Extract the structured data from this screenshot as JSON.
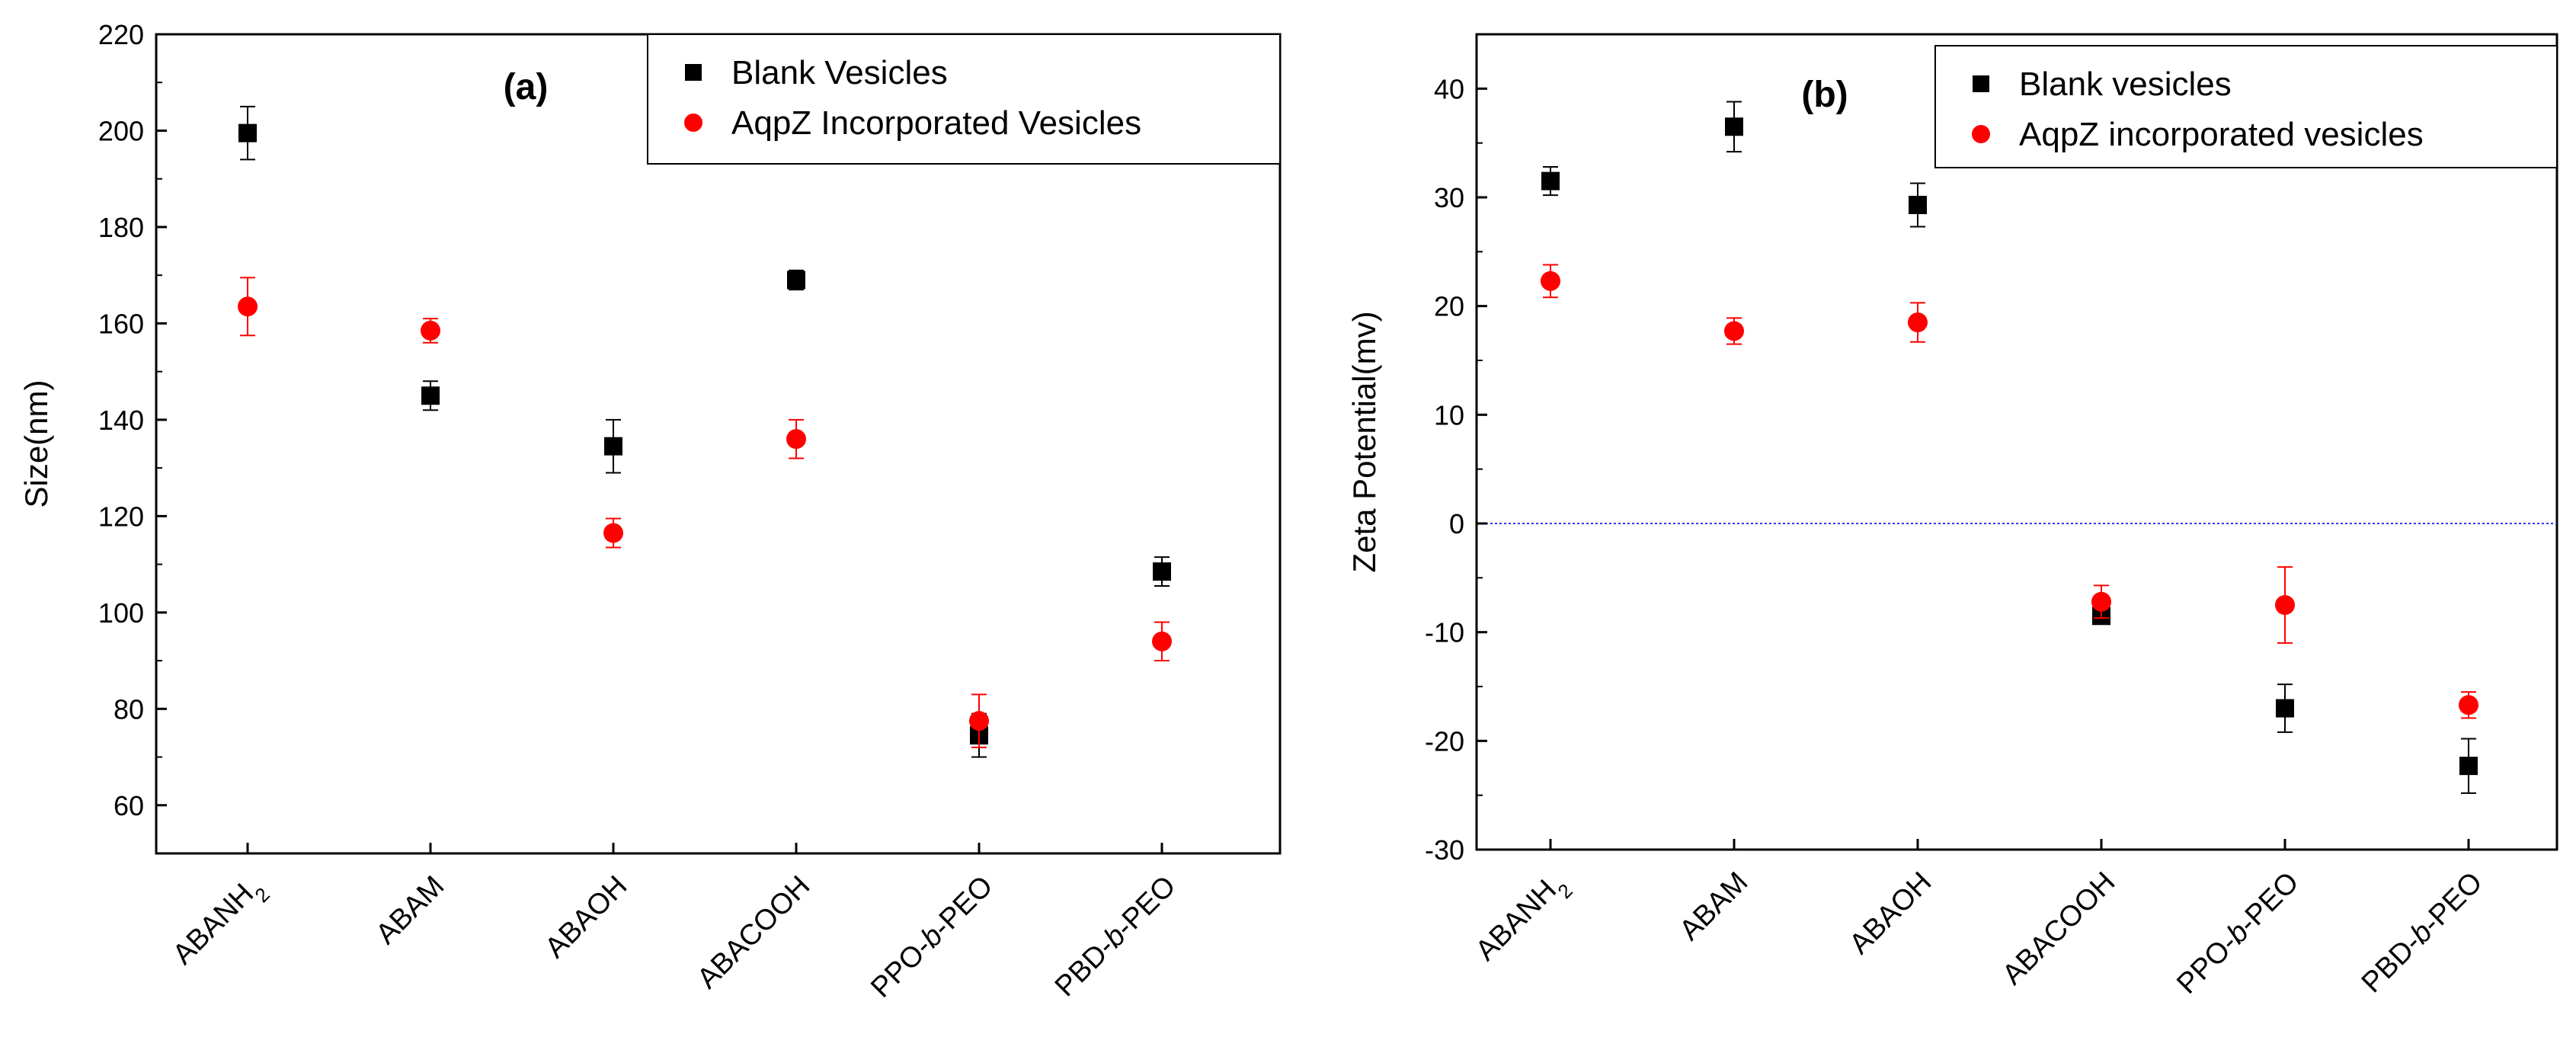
{
  "chart_data": [
    {
      "type": "scatter",
      "panel": "(a)",
      "title": "",
      "xlabel": "",
      "ylabel": "Size(nm)",
      "ylim": [
        50,
        220
      ],
      "yticks": [
        60,
        80,
        100,
        120,
        140,
        160,
        180,
        200,
        220
      ],
      "categories": [
        {
          "base": "ABANH",
          "sub": "2",
          "italic": "",
          "tail": ""
        },
        {
          "base": "ABAM",
          "sub": "",
          "italic": "",
          "tail": ""
        },
        {
          "base": "ABAOH",
          "sub": "",
          "italic": "",
          "tail": ""
        },
        {
          "base": "ABACOOH",
          "sub": "",
          "italic": "",
          "tail": ""
        },
        {
          "base": "PPO-",
          "sub": "",
          "italic": "b",
          "tail": "-PEO"
        },
        {
          "base": "PBD-",
          "sub": "",
          "italic": "b",
          "tail": "-PEO"
        }
      ],
      "series": [
        {
          "name": "Blank  Vesicles",
          "marker": "square",
          "color": "#000000",
          "values": [
            199.5,
            145,
            134.5,
            169,
            74.5,
            108.5
          ],
          "errors": [
            5.5,
            3,
            5.5,
            2,
            4.5,
            3
          ]
        },
        {
          "name": "AqpZ Incorporated Vesicles",
          "marker": "circle",
          "color": "#ff0000",
          "values": [
            163.5,
            158.5,
            116.5,
            136,
            77.5,
            94
          ],
          "errors": [
            6,
            2.5,
            3,
            4,
            5.5,
            4
          ]
        }
      ],
      "zero_line": false,
      "legend": "top-right"
    },
    {
      "type": "scatter",
      "panel": "(b)",
      "title": "",
      "xlabel": "",
      "ylabel": "Zeta Potential(mv)",
      "ylim": [
        -30,
        45
      ],
      "yticks": [
        -30,
        -20,
        -10,
        0,
        10,
        20,
        30,
        40
      ],
      "categories": [
        {
          "base": "ABANH",
          "sub": "2",
          "italic": "",
          "tail": ""
        },
        {
          "base": "ABAM",
          "sub": "",
          "italic": "",
          "tail": ""
        },
        {
          "base": "ABAOH",
          "sub": "",
          "italic": "",
          "tail": ""
        },
        {
          "base": "ABACOOH",
          "sub": "",
          "italic": "",
          "tail": ""
        },
        {
          "base": "PPO-",
          "sub": "",
          "italic": "b",
          "tail": "-PEO"
        },
        {
          "base": "PBD-",
          "sub": "",
          "italic": "b",
          "tail": "-PEO"
        }
      ],
      "series": [
        {
          "name": "Blank vesicles",
          "marker": "square",
          "color": "#000000",
          "values": [
            31.5,
            36.5,
            29.3,
            -8.5,
            -17,
            -22.3
          ],
          "errors": [
            1.3,
            2.3,
            2,
            0.5,
            2.2,
            2.5
          ]
        },
        {
          "name": "AqpZ incorporated vesicles",
          "marker": "circle",
          "color": "#ff0000",
          "values": [
            22.3,
            17.7,
            18.5,
            -7.2,
            -7.5,
            -16.7
          ],
          "errors": [
            1.5,
            1.2,
            1.8,
            1.5,
            3.5,
            1.2
          ]
        }
      ],
      "zero_line": true,
      "zero_line_color": "#3333ff",
      "legend": "top-right"
    }
  ]
}
